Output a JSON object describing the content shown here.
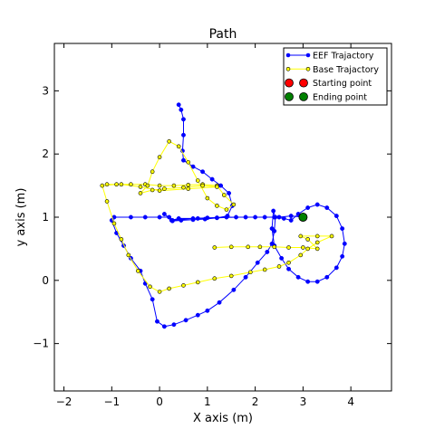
{
  "chart_data": {
    "type": "line",
    "title": "Path",
    "xlabel": "X axis (m)",
    "ylabel": "y axis (m)",
    "xlim": [
      -2.2,
      4.85
    ],
    "ylim": [
      -1.75,
      3.75
    ],
    "xticks": [
      -2,
      -1,
      0,
      1,
      2,
      3,
      4
    ],
    "yticks": [
      -1,
      0,
      1,
      2,
      3
    ],
    "xtick_labels": [
      "−2",
      "−1",
      "0",
      "1",
      "2",
      "3",
      "4"
    ],
    "ytick_labels": [
      "−1",
      "0",
      "1",
      "2",
      "3"
    ],
    "grid": false,
    "legend_position": "top-right",
    "legend": [
      {
        "label": "EEF Trajactory",
        "kind": "line",
        "color": "#0000ff"
      },
      {
        "label": "Base Trajactory",
        "kind": "line",
        "color": "#ffff00"
      },
      {
        "label": "Starting point",
        "kind": "marker",
        "color": "#ff0000"
      },
      {
        "label": "Ending point",
        "kind": "marker",
        "color": "#008000"
      }
    ],
    "series": [
      {
        "name": "EEF Trajactory",
        "color": "#0000ff",
        "points": [
          [
            0.4,
            2.78
          ],
          [
            0.45,
            2.7
          ],
          [
            0.5,
            2.55
          ],
          [
            0.5,
            2.3
          ],
          [
            0.48,
            2.05
          ],
          [
            0.5,
            1.9
          ],
          [
            0.7,
            1.8
          ],
          [
            0.9,
            1.72
          ],
          [
            1.1,
            1.6
          ],
          [
            1.28,
            1.5
          ],
          [
            1.45,
            1.38
          ],
          [
            1.52,
            1.18
          ],
          [
            1.42,
            1.02
          ],
          [
            1.2,
            0.99
          ],
          [
            0.95,
            0.97
          ],
          [
            0.7,
            0.96
          ],
          [
            0.45,
            0.95
          ],
          [
            0.27,
            0.94
          ],
          [
            0.2,
            1.0
          ],
          [
            0.0,
            1.0
          ],
          [
            -0.3,
            1.0
          ],
          [
            -0.6,
            1.0
          ],
          [
            -0.95,
            1.0
          ],
          [
            -1.0,
            0.95
          ],
          [
            -0.9,
            0.75
          ],
          [
            -0.75,
            0.55
          ],
          [
            -0.6,
            0.35
          ],
          [
            -0.4,
            0.15
          ],
          [
            -0.3,
            -0.05
          ],
          [
            -0.15,
            -0.3
          ],
          [
            -0.05,
            -0.65
          ],
          [
            0.1,
            -0.73
          ],
          [
            0.3,
            -0.7
          ],
          [
            0.55,
            -0.63
          ],
          [
            0.8,
            -0.55
          ],
          [
            1.0,
            -0.48
          ],
          [
            1.25,
            -0.35
          ],
          [
            1.55,
            -0.15
          ],
          [
            1.8,
            0.05
          ],
          [
            2.05,
            0.28
          ],
          [
            2.25,
            0.45
          ],
          [
            2.35,
            0.58
          ],
          [
            2.4,
            0.78
          ],
          [
            2.42,
            1.0
          ],
          [
            2.38,
            1.1
          ],
          [
            2.35,
            0.82
          ],
          [
            2.4,
            0.55
          ],
          [
            2.55,
            0.35
          ],
          [
            2.7,
            0.18
          ],
          [
            2.9,
            0.05
          ],
          [
            3.1,
            -0.02
          ],
          [
            3.3,
            -0.02
          ],
          [
            3.5,
            0.05
          ],
          [
            3.7,
            0.2
          ],
          [
            3.82,
            0.38
          ],
          [
            3.87,
            0.58
          ],
          [
            3.82,
            0.82
          ],
          [
            3.7,
            1.02
          ],
          [
            3.5,
            1.15
          ],
          [
            3.3,
            1.2
          ],
          [
            3.1,
            1.15
          ],
          [
            2.9,
            1.05
          ],
          [
            2.75,
            0.95
          ],
          [
            2.6,
            0.98
          ],
          [
            2.4,
            1.0
          ],
          [
            2.0,
            1.0
          ],
          [
            1.6,
            1.0
          ],
          [
            1.2,
            0.99
          ],
          [
            0.8,
            0.98
          ],
          [
            0.4,
            0.98
          ],
          [
            0.25,
            0.95
          ],
          [
            0.1,
            1.05
          ],
          [
            0.27,
            0.95
          ],
          [
            0.7,
            0.98
          ],
          [
            1.0,
            0.99
          ],
          [
            1.4,
            1.0
          ],
          [
            1.8,
            1.0
          ],
          [
            2.2,
            1.0
          ],
          [
            2.5,
            1.0
          ],
          [
            2.75,
            1.02
          ],
          [
            3.0,
            1.0
          ]
        ]
      },
      {
        "name": "Base Trajactory",
        "color": "#ffff00",
        "points": [
          [
            1.15,
            0.52
          ],
          [
            1.5,
            0.53
          ],
          [
            1.85,
            0.53
          ],
          [
            2.1,
            0.53
          ],
          [
            2.4,
            0.53
          ],
          [
            2.7,
            0.52
          ],
          [
            3.0,
            0.52
          ],
          [
            3.3,
            0.5
          ],
          [
            3.1,
            0.65
          ],
          [
            2.95,
            0.7
          ],
          [
            3.3,
            0.7
          ],
          [
            3.6,
            0.7
          ],
          [
            3.3,
            0.6
          ],
          [
            3.1,
            0.5
          ],
          [
            2.95,
            0.4
          ],
          [
            2.7,
            0.28
          ],
          [
            2.5,
            0.22
          ],
          [
            2.2,
            0.17
          ],
          [
            1.9,
            0.13
          ],
          [
            1.5,
            0.07
          ],
          [
            1.15,
            0.03
          ],
          [
            0.8,
            -0.03
          ],
          [
            0.5,
            -0.08
          ],
          [
            0.2,
            -0.13
          ],
          [
            0.0,
            -0.18
          ],
          [
            -0.2,
            -0.1
          ],
          [
            -0.45,
            0.15
          ],
          [
            -0.65,
            0.4
          ],
          [
            -0.8,
            0.65
          ],
          [
            -0.95,
            0.9
          ],
          [
            -1.1,
            1.25
          ],
          [
            -1.2,
            1.5
          ],
          [
            -0.9,
            1.52
          ],
          [
            -0.6,
            1.52
          ],
          [
            -0.3,
            1.52
          ],
          [
            0.0,
            1.5
          ],
          [
            0.3,
            1.5
          ],
          [
            0.6,
            1.51
          ],
          [
            0.9,
            1.52
          ],
          [
            1.2,
            1.5
          ],
          [
            1.35,
            1.35
          ],
          [
            1.55,
            1.2
          ],
          [
            1.4,
            1.12
          ],
          [
            1.2,
            1.18
          ],
          [
            1.0,
            1.3
          ],
          [
            0.8,
            1.58
          ],
          [
            0.6,
            1.87
          ],
          [
            0.4,
            2.12
          ],
          [
            0.2,
            2.2
          ],
          [
            0.0,
            1.95
          ],
          [
            -0.15,
            1.72
          ],
          [
            -0.25,
            1.5
          ],
          [
            -0.4,
            1.38
          ],
          [
            -0.15,
            1.43
          ],
          [
            0.1,
            1.45
          ],
          [
            0.5,
            1.47
          ],
          [
            0.9,
            1.5
          ],
          [
            1.2,
            1.48
          ],
          [
            0.6,
            1.45
          ],
          [
            0.0,
            1.42
          ],
          [
            -0.4,
            1.48
          ],
          [
            -0.8,
            1.52
          ],
          [
            -1.1,
            1.52
          ]
        ]
      }
    ],
    "start_point": {
      "x": 3.0,
      "y": 1.0
    },
    "end_point": {
      "x": 3.0,
      "y": 1.0
    }
  }
}
